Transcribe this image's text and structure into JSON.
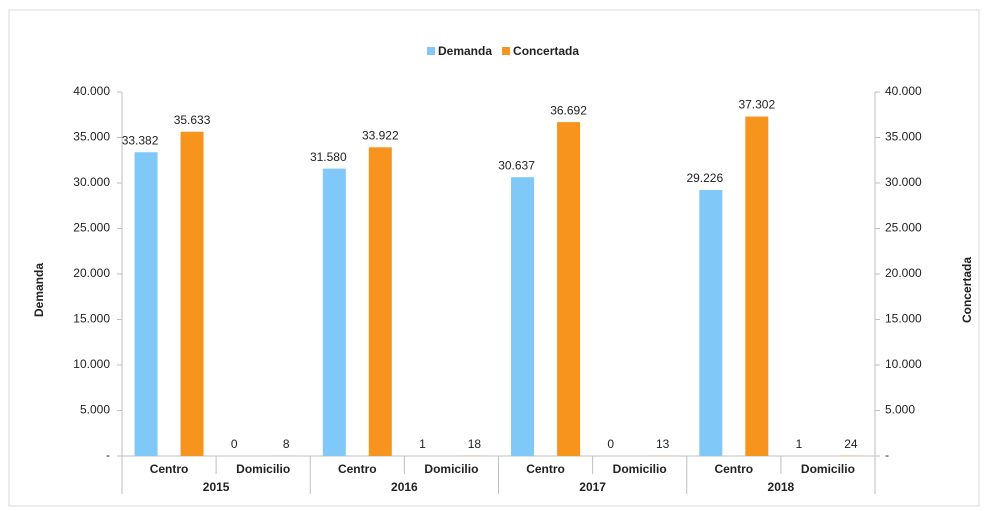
{
  "chart_data": {
    "type": "bar",
    "groups": [
      "2015",
      "2016",
      "2017",
      "2018"
    ],
    "categories": [
      "Centro",
      "Domicilio",
      "Centro",
      "Domicilio",
      "Centro",
      "Domicilio",
      "Centro",
      "Domicilio"
    ],
    "series": [
      {
        "name": "Demanda",
        "color": "#7fc8f8",
        "values": [
          33382,
          0,
          31580,
          1,
          30637,
          0,
          29226,
          1
        ],
        "value_labels": [
          "33.382",
          "0",
          "31.580",
          "1",
          "30.637",
          "0",
          "29.226",
          "1"
        ]
      },
      {
        "name": "Concertada",
        "color": "#f7941d",
        "axis": "y2",
        "values": [
          35633,
          8,
          33922,
          18,
          36692,
          13,
          37302,
          24
        ],
        "value_labels": [
          "35.633",
          "8",
          "33.922",
          "18",
          "36.692",
          "13",
          "37.302",
          "24"
        ]
      }
    ],
    "ylabel": "Demanda",
    "y2label": "Concertada",
    "ylim": [
      0,
      40000
    ],
    "yticks": [
      {
        "value": 0,
        "label": "-"
      },
      {
        "value": 5000,
        "label": "5.000"
      },
      {
        "value": 10000,
        "label": "10.000"
      },
      {
        "value": 15000,
        "label": "15.000"
      },
      {
        "value": 20000,
        "label": "20.000"
      },
      {
        "value": 25000,
        "label": "25.000"
      },
      {
        "value": 30000,
        "label": "30.000"
      },
      {
        "value": 35000,
        "label": "35.000"
      },
      {
        "value": 40000,
        "label": "40.000"
      }
    ],
    "y2lim": [
      0,
      40000
    ],
    "y2ticks": [
      {
        "value": 0,
        "label": "-"
      },
      {
        "value": 5000,
        "label": "5.000"
      },
      {
        "value": 10000,
        "label": "10.000"
      },
      {
        "value": 15000,
        "label": "15.000"
      },
      {
        "value": 20000,
        "label": "20.000"
      },
      {
        "value": 25000,
        "label": "25.000"
      },
      {
        "value": 30000,
        "label": "30.000"
      },
      {
        "value": 35000,
        "label": "35.000"
      },
      {
        "value": 40000,
        "label": "40.000"
      }
    ],
    "legend": "top"
  }
}
